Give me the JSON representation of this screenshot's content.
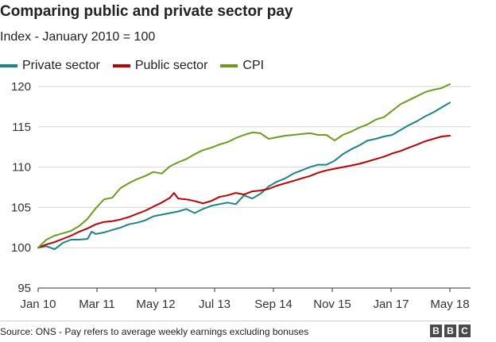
{
  "title": "Comparing public and private sector pay",
  "subtitle": "Index - January 2010 = 100",
  "source": "Source: ONS - Pay refers to average weekly earnings excluding bonuses",
  "logo": {
    "letters": [
      "B",
      "B",
      "C"
    ]
  },
  "colors": {
    "private": "#1a8488",
    "public": "#c00000",
    "cpi": "#6a9e1a",
    "grid": "#d6d6d6",
    "axis": "#333333"
  },
  "chart_data": {
    "type": "line",
    "title": "Comparing public and private sector pay",
    "subtitle": "Index - January 2010 = 100",
    "xlabel": "",
    "ylabel": "",
    "x_ticks": [
      "Jan 10",
      "Mar 11",
      "May 12",
      "Jul 13",
      "Sep 14",
      "Nov 15",
      "Jan 17",
      "May 18"
    ],
    "x_range": [
      "2010-01",
      "2018-05"
    ],
    "ylim": [
      95,
      120
    ],
    "y_ticks": [
      95,
      100,
      105,
      110,
      115,
      120
    ],
    "grid": true,
    "legend_position": "top-left",
    "series": [
      {
        "name": "Private sector",
        "color": "#1a8488",
        "points": [
          [
            "2010-01",
            100.0
          ],
          [
            "2010-03",
            100.2
          ],
          [
            "2010-05",
            99.8
          ],
          [
            "2010-07",
            100.6
          ],
          [
            "2010-09",
            101.0
          ],
          [
            "2010-11",
            101.0
          ],
          [
            "2011-01",
            101.1
          ],
          [
            "2011-02",
            102.0
          ],
          [
            "2011-03",
            101.7
          ],
          [
            "2011-05",
            101.9
          ],
          [
            "2011-07",
            102.2
          ],
          [
            "2011-09",
            102.5
          ],
          [
            "2011-11",
            102.9
          ],
          [
            "2012-01",
            103.1
          ],
          [
            "2012-03",
            103.4
          ],
          [
            "2012-05",
            103.9
          ],
          [
            "2012-07",
            104.1
          ],
          [
            "2012-09",
            104.3
          ],
          [
            "2012-11",
            104.5
          ],
          [
            "2013-01",
            104.8
          ],
          [
            "2013-03",
            104.3
          ],
          [
            "2013-05",
            104.8
          ],
          [
            "2013-07",
            105.2
          ],
          [
            "2013-09",
            105.4
          ],
          [
            "2013-11",
            105.6
          ],
          [
            "2014-01",
            105.4
          ],
          [
            "2014-03",
            106.5
          ],
          [
            "2014-05",
            106.1
          ],
          [
            "2014-07",
            106.7
          ],
          [
            "2014-09",
            107.6
          ],
          [
            "2014-11",
            108.2
          ],
          [
            "2015-01",
            108.6
          ],
          [
            "2015-03",
            109.2
          ],
          [
            "2015-05",
            109.6
          ],
          [
            "2015-07",
            110.0
          ],
          [
            "2015-09",
            110.3
          ],
          [
            "2015-11",
            110.3
          ],
          [
            "2016-01",
            110.8
          ],
          [
            "2016-03",
            111.6
          ],
          [
            "2016-05",
            112.2
          ],
          [
            "2016-07",
            112.7
          ],
          [
            "2016-09",
            113.3
          ],
          [
            "2016-11",
            113.5
          ],
          [
            "2017-01",
            113.8
          ],
          [
            "2017-03",
            114.0
          ],
          [
            "2017-05",
            114.6
          ],
          [
            "2017-07",
            115.2
          ],
          [
            "2017-09",
            115.7
          ],
          [
            "2017-11",
            116.3
          ],
          [
            "2018-01",
            116.8
          ],
          [
            "2018-03",
            117.4
          ],
          [
            "2018-05",
            118.0
          ]
        ]
      },
      {
        "name": "Public sector",
        "color": "#c00000",
        "points": [
          [
            "2010-01",
            100.0
          ],
          [
            "2010-03",
            100.4
          ],
          [
            "2010-05",
            100.7
          ],
          [
            "2010-07",
            101.1
          ],
          [
            "2010-09",
            101.5
          ],
          [
            "2010-11",
            102.0
          ],
          [
            "2011-01",
            102.4
          ],
          [
            "2011-03",
            102.9
          ],
          [
            "2011-05",
            103.2
          ],
          [
            "2011-07",
            103.3
          ],
          [
            "2011-09",
            103.5
          ],
          [
            "2011-11",
            103.8
          ],
          [
            "2012-01",
            104.2
          ],
          [
            "2012-03",
            104.6
          ],
          [
            "2012-05",
            105.1
          ],
          [
            "2012-07",
            105.6
          ],
          [
            "2012-09",
            106.2
          ],
          [
            "2012-10",
            106.8
          ],
          [
            "2012-11",
            106.1
          ],
          [
            "2013-01",
            106.0
          ],
          [
            "2013-03",
            105.8
          ],
          [
            "2013-05",
            105.5
          ],
          [
            "2013-07",
            105.8
          ],
          [
            "2013-09",
            106.3
          ],
          [
            "2013-11",
            106.5
          ],
          [
            "2014-01",
            106.8
          ],
          [
            "2014-03",
            106.6
          ],
          [
            "2014-05",
            107.0
          ],
          [
            "2014-07",
            107.1
          ],
          [
            "2014-09",
            107.3
          ],
          [
            "2014-11",
            107.7
          ],
          [
            "2015-01",
            108.0
          ],
          [
            "2015-03",
            108.3
          ],
          [
            "2015-05",
            108.6
          ],
          [
            "2015-07",
            108.9
          ],
          [
            "2015-09",
            109.3
          ],
          [
            "2015-11",
            109.6
          ],
          [
            "2016-01",
            109.8
          ],
          [
            "2016-03",
            110.0
          ],
          [
            "2016-05",
            110.2
          ],
          [
            "2016-07",
            110.4
          ],
          [
            "2016-09",
            110.7
          ],
          [
            "2016-11",
            111.0
          ],
          [
            "2017-01",
            111.3
          ],
          [
            "2017-03",
            111.7
          ],
          [
            "2017-05",
            112.0
          ],
          [
            "2017-07",
            112.4
          ],
          [
            "2017-09",
            112.8
          ],
          [
            "2017-11",
            113.2
          ],
          [
            "2018-01",
            113.5
          ],
          [
            "2018-03",
            113.8
          ],
          [
            "2018-05",
            113.9
          ]
        ]
      },
      {
        "name": "CPI",
        "color": "#6a9e1a",
        "points": [
          [
            "2010-01",
            100.0
          ],
          [
            "2010-03",
            101.0
          ],
          [
            "2010-05",
            101.5
          ],
          [
            "2010-07",
            101.8
          ],
          [
            "2010-09",
            102.1
          ],
          [
            "2010-11",
            102.7
          ],
          [
            "2011-01",
            103.6
          ],
          [
            "2011-03",
            104.9
          ],
          [
            "2011-05",
            106.0
          ],
          [
            "2011-07",
            106.2
          ],
          [
            "2011-09",
            107.4
          ],
          [
            "2011-11",
            108.0
          ],
          [
            "2012-01",
            108.5
          ],
          [
            "2012-03",
            108.9
          ],
          [
            "2012-05",
            109.4
          ],
          [
            "2012-07",
            109.2
          ],
          [
            "2012-09",
            110.1
          ],
          [
            "2012-11",
            110.6
          ],
          [
            "2013-01",
            111.0
          ],
          [
            "2013-03",
            111.6
          ],
          [
            "2013-05",
            112.1
          ],
          [
            "2013-07",
            112.4
          ],
          [
            "2013-09",
            112.8
          ],
          [
            "2013-11",
            113.1
          ],
          [
            "2014-01",
            113.6
          ],
          [
            "2014-03",
            114.0
          ],
          [
            "2014-05",
            114.3
          ],
          [
            "2014-07",
            114.2
          ],
          [
            "2014-09",
            113.5
          ],
          [
            "2014-11",
            113.7
          ],
          [
            "2015-01",
            113.9
          ],
          [
            "2015-03",
            114.0
          ],
          [
            "2015-05",
            114.1
          ],
          [
            "2015-07",
            114.2
          ],
          [
            "2015-09",
            114.0
          ],
          [
            "2015-11",
            114.0
          ],
          [
            "2016-01",
            113.3
          ],
          [
            "2016-03",
            114.0
          ],
          [
            "2016-05",
            114.4
          ],
          [
            "2016-07",
            114.9
          ],
          [
            "2016-09",
            115.3
          ],
          [
            "2016-11",
            115.9
          ],
          [
            "2017-01",
            116.2
          ],
          [
            "2017-03",
            117.0
          ],
          [
            "2017-05",
            117.8
          ],
          [
            "2017-07",
            118.3
          ],
          [
            "2017-09",
            118.8
          ],
          [
            "2017-11",
            119.3
          ],
          [
            "2018-01",
            119.6
          ],
          [
            "2018-03",
            119.8
          ],
          [
            "2018-05",
            120.3
          ]
        ]
      }
    ]
  }
}
